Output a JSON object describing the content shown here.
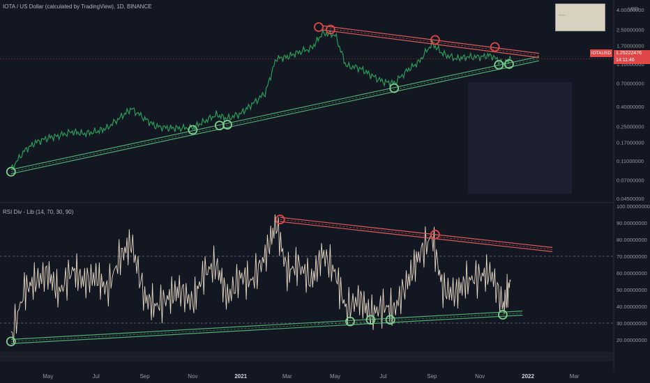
{
  "header": {
    "title": "IOTA / US Dollar (calculated by TradingView), 1D, BINANCE",
    "currency": "USD"
  },
  "rsi_panel": {
    "title": "RSI Div - Lib (14, 70, 30, 90)"
  },
  "price_marker": {
    "symbol": "IOTAUSD",
    "value": "1.25222476",
    "countdown": "14:11:46"
  },
  "colors": {
    "background": "#131722",
    "price_line": "#2a9d5a",
    "price_line_red": "#e04848",
    "rsi_line": "#e8d9c4",
    "rsi_overbought": "#e04848",
    "support_trendline": "#4fae6f",
    "resistance_trendline": "#e05c5c",
    "circle_red": "#e04848",
    "circle_green": "#7fcf8f",
    "price_tag": "#e04848"
  },
  "chart_data": [
    {
      "type": "line",
      "title": "IOTA / US Dollar (calculated by TradingView), 1D, BINANCE",
      "xlabel": "",
      "ylabel": "USD",
      "scale": "log",
      "x_tick_labels": [
        "May",
        "Jul",
        "Sep",
        "Nov",
        "2021",
        "Mar",
        "May",
        "Jul",
        "Sep",
        "Nov",
        "2022",
        "Mar"
      ],
      "y_tick_labels": [
        "4.00000000",
        "2.50000000",
        "1.70000000",
        "1.10000000",
        "0.70000000",
        "0.40000000",
        "0.25000000",
        "0.17000000",
        "0.11000000",
        "0.07000000",
        "0.04500000"
      ],
      "ylim": [
        0.045,
        4.0
      ],
      "series": [
        {
          "name": "IOTAUSD",
          "x": [
            "2020-03-15",
            "2020-04-01",
            "2020-04-15",
            "2020-05-01",
            "2020-05-15",
            "2020-06-01",
            "2020-06-15",
            "2020-07-01",
            "2020-07-15",
            "2020-08-01",
            "2020-08-15",
            "2020-09-01",
            "2020-09-15",
            "2020-10-01",
            "2020-10-15",
            "2020-11-01",
            "2020-11-15",
            "2020-12-01",
            "2020-12-15",
            "2021-01-01",
            "2021-01-15",
            "2021-02-01",
            "2021-02-15",
            "2021-03-01",
            "2021-03-15",
            "2021-04-01",
            "2021-04-15",
            "2021-05-01",
            "2021-05-15",
            "2021-06-01",
            "2021-06-15",
            "2021-07-01",
            "2021-07-15",
            "2021-08-01",
            "2021-08-15",
            "2021-09-01",
            "2021-09-15",
            "2021-10-01",
            "2021-10-15",
            "2021-11-01",
            "2021-11-15",
            "2021-12-01",
            "2021-12-10"
          ],
          "values": [
            0.09,
            0.14,
            0.17,
            0.19,
            0.2,
            0.22,
            0.21,
            0.22,
            0.24,
            0.31,
            0.38,
            0.3,
            0.25,
            0.24,
            0.24,
            0.24,
            0.28,
            0.33,
            0.3,
            0.34,
            0.42,
            0.55,
            1.25,
            1.3,
            1.45,
            1.6,
            2.3,
            2.2,
            1.05,
            1.0,
            0.85,
            0.72,
            0.7,
            0.95,
            1.15,
            1.8,
            1.4,
            1.25,
            1.3,
            1.3,
            1.35,
            1.1,
            1.25
          ]
        }
      ],
      "trendlines": [
        {
          "name": "support",
          "from": [
            "2020-03-15",
            0.085
          ],
          "to": [
            "2022-01-15",
            1.25
          ]
        },
        {
          "name": "resistance",
          "from": [
            "2021-04-15",
            2.6
          ],
          "to": [
            "2022-01-15",
            1.35
          ]
        }
      ]
    },
    {
      "type": "line",
      "title": "RSI Div - Lib (14, 70, 30, 90)",
      "xlabel": "",
      "ylabel": "",
      "y_tick_labels": [
        "100.00000000",
        "90.00000000",
        "80.00000000",
        "70.00000000",
        "60.00000000",
        "50.00000000",
        "40.00000000",
        "30.00000000",
        "20.00000000"
      ],
      "ylim": [
        15,
        100
      ],
      "levels": [
        70,
        30
      ],
      "series": [
        {
          "name": "RSI",
          "x": [
            "2020-03-15",
            "2020-04-01",
            "2020-04-15",
            "2020-05-01",
            "2020-05-15",
            "2020-06-01",
            "2020-06-15",
            "2020-07-01",
            "2020-07-15",
            "2020-08-01",
            "2020-08-15",
            "2020-09-01",
            "2020-09-15",
            "2020-10-01",
            "2020-10-15",
            "2020-11-01",
            "2020-11-15",
            "2020-12-01",
            "2020-12-15",
            "2021-01-01",
            "2021-01-15",
            "2021-02-01",
            "2021-02-15",
            "2021-03-01",
            "2021-03-15",
            "2021-04-01",
            "2021-04-15",
            "2021-05-01",
            "2021-05-15",
            "2021-06-01",
            "2021-06-15",
            "2021-07-01",
            "2021-07-15",
            "2021-08-01",
            "2021-08-15",
            "2021-09-01",
            "2021-09-15",
            "2021-10-01",
            "2021-10-15",
            "2021-11-01",
            "2021-11-15",
            "2021-12-01",
            "2021-12-10"
          ],
          "values": [
            20,
            50,
            55,
            60,
            48,
            62,
            55,
            58,
            50,
            70,
            78,
            45,
            40,
            45,
            50,
            42,
            60,
            65,
            45,
            58,
            55,
            70,
            90,
            60,
            65,
            55,
            72,
            60,
            38,
            45,
            35,
            40,
            38,
            55,
            70,
            82,
            50,
            48,
            55,
            58,
            60,
            40,
            55
          ]
        }
      ],
      "trendlines": [
        {
          "name": "support",
          "from": [
            "2020-03-15",
            19
          ],
          "to": [
            "2021-12-25",
            36
          ]
        },
        {
          "name": "resistance",
          "from": [
            "2021-02-20",
            92
          ],
          "to": [
            "2022-02-01",
            74
          ]
        }
      ]
    }
  ]
}
